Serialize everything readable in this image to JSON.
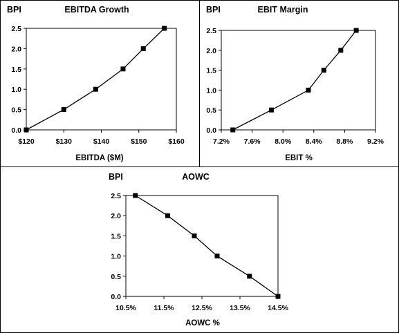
{
  "chart_data": [
    {
      "type": "line",
      "title": "EBITDA  Growth",
      "ylabel": "BPI",
      "xlabel": "EBITDA  ($M)",
      "x": [
        120,
        130,
        138.5,
        145.8,
        151.2,
        156.8
      ],
      "y": [
        0.0,
        0.5,
        1.0,
        1.5,
        2.0,
        2.5
      ],
      "xlim": [
        120,
        160
      ],
      "ylim": [
        0,
        2.5
      ],
      "x_ticks": [
        120,
        130,
        140,
        150,
        160
      ],
      "x_tick_labels": [
        "$120",
        "$130",
        "$140",
        "$150",
        "$160"
      ],
      "y_ticks": [
        0,
        0.5,
        1,
        1.5,
        2,
        2.5
      ],
      "y_tick_labels": [
        "0.0",
        "0.5",
        "1.0",
        "1.5",
        "2.0",
        "2.5"
      ],
      "marker": "square",
      "line_color": "#000000",
      "grid": false,
      "legend": "none"
    },
    {
      "type": "line",
      "title": "EBIT Margin",
      "ylabel": "BPI",
      "xlabel": "EBIT %",
      "x": [
        7.35,
        7.85,
        8.33,
        8.53,
        8.75,
        8.95
      ],
      "y": [
        0.0,
        0.5,
        1.0,
        1.5,
        2.0,
        2.5
      ],
      "xlim": [
        7.2,
        9.2
      ],
      "ylim": [
        0,
        2.5
      ],
      "x_ticks": [
        7.2,
        7.6,
        8.0,
        8.4,
        8.8,
        9.2
      ],
      "x_tick_labels": [
        "7.2%",
        "7.6%",
        "8.0%",
        "8.4%",
        "8.8%",
        "9.2%"
      ],
      "y_ticks": [
        0,
        0.5,
        1,
        1.5,
        2,
        2.5
      ],
      "y_tick_labels": [
        "0.0",
        "0.5",
        "1.0",
        "1.5",
        "2.0",
        "2.5"
      ],
      "marker": "square",
      "line_color": "#000000",
      "grid": false,
      "legend": "none"
    },
    {
      "type": "line",
      "title": "AOWC",
      "ylabel": "BPI",
      "xlabel": "AOWC %",
      "x": [
        10.75,
        11.6,
        12.3,
        12.9,
        13.75,
        14.5
      ],
      "y": [
        2.5,
        2.0,
        1.5,
        1.0,
        0.5,
        0.0
      ],
      "xlim": [
        10.5,
        14.5
      ],
      "ylim": [
        0,
        2.5
      ],
      "x_ticks": [
        10.5,
        11.5,
        12.5,
        13.5,
        14.5
      ],
      "x_tick_labels": [
        "10.5%",
        "11.5%",
        "12.5%",
        "13.5%",
        "14.5%"
      ],
      "y_ticks": [
        0,
        0.5,
        1,
        1.5,
        2,
        2.5
      ],
      "y_tick_labels": [
        "0.0",
        "0.5",
        "1.0",
        "1.5",
        "2.0",
        "2.5"
      ],
      "marker": "square",
      "line_color": "#000000",
      "grid": false,
      "legend": "none"
    }
  ]
}
